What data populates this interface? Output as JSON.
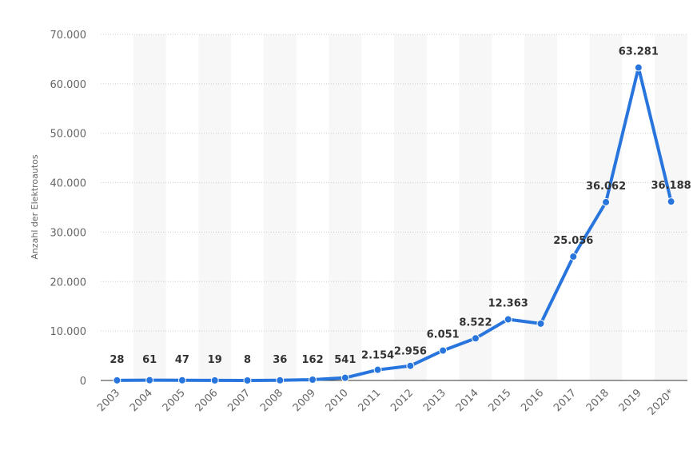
{
  "chart_data": {
    "type": "line",
    "title": "",
    "xlabel": "",
    "ylabel": "Anzahl der Elektroautos",
    "categories": [
      "2003",
      "2004",
      "2005",
      "2006",
      "2007",
      "2008",
      "2009",
      "2010",
      "2011",
      "2012",
      "2013",
      "2014",
      "2015",
      "2016",
      "2017",
      "2018",
      "2019",
      "2020*"
    ],
    "series": [
      {
        "values": [
          28,
          61,
          47,
          19,
          8,
          36,
          162,
          541,
          2154,
          2956,
          6051,
          8522,
          12363,
          11500,
          25056,
          36062,
          63281,
          36188
        ],
        "data_labels": [
          "28",
          "61",
          "47",
          "19",
          "8",
          "36",
          "162",
          "541",
          "2.154",
          "2.956",
          "6.051",
          "8.522",
          "12.363",
          "",
          "25.056",
          "36.062",
          "63.281",
          "36.188"
        ]
      }
    ],
    "ylim": [
      0,
      70000
    ],
    "yticks": [
      0,
      10000,
      20000,
      30000,
      40000,
      50000,
      60000,
      70000
    ],
    "ytick_labels": [
      "0",
      "10.000",
      "20.000",
      "30.000",
      "40.000",
      "50.000",
      "60.000",
      "70.000"
    ],
    "grid": true,
    "line_color": "#2876dd",
    "band_color": "#f7f7f7",
    "grid_color": "#cccccc"
  }
}
